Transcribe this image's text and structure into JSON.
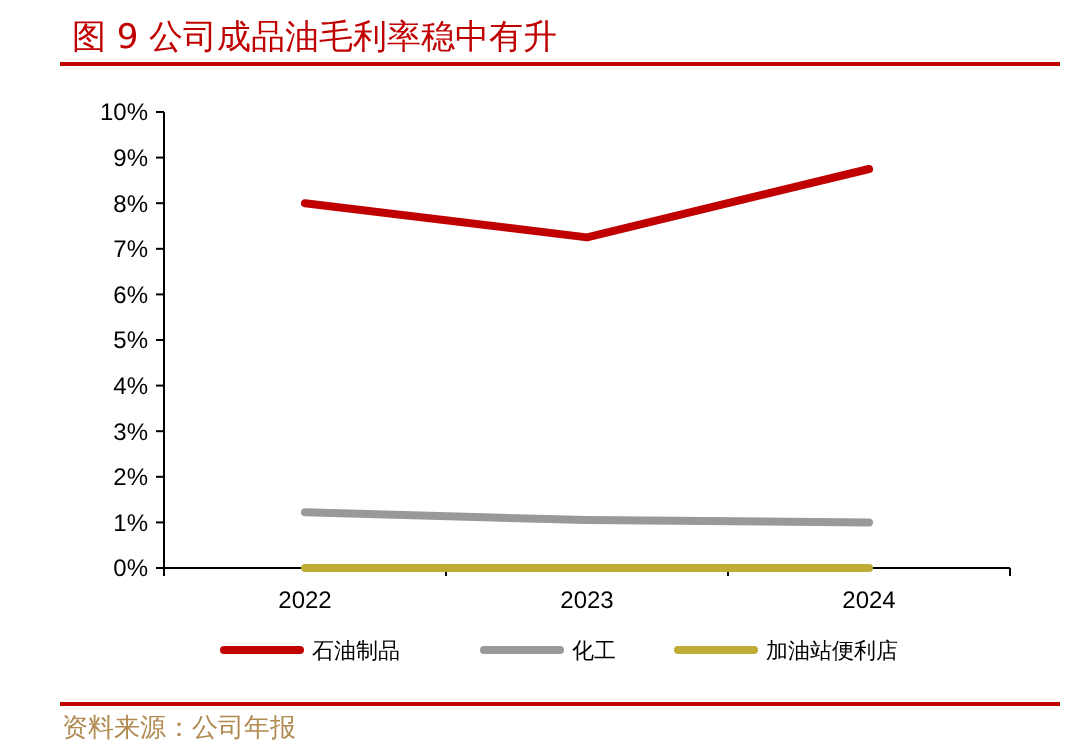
{
  "chart_data": {
    "type": "line",
    "title": "图 9 公司成品油毛利率稳中有升",
    "categories": [
      "2022",
      "2023",
      "2024"
    ],
    "series": [
      {
        "name": "石油制品",
        "color": "#c00000",
        "values": [
          8.0,
          7.25,
          8.75
        ]
      },
      {
        "name": "化工",
        "color": "#999999",
        "values": [
          1.22,
          1.05,
          1.0
        ]
      },
      {
        "name": "加油站便利店",
        "color": "#bfac36",
        "values": [
          0,
          0,
          0
        ]
      }
    ],
    "ylim": [
      0,
      10
    ],
    "yticks": [
      {
        "value": 0,
        "label": "0%"
      },
      {
        "value": 1,
        "label": "1%"
      },
      {
        "value": 2,
        "label": "2%"
      },
      {
        "value": 3,
        "label": "3%"
      },
      {
        "value": 4,
        "label": "4%"
      },
      {
        "value": 5,
        "label": "5%"
      },
      {
        "value": 6,
        "label": "6%"
      },
      {
        "value": 7,
        "label": "7%"
      },
      {
        "value": 8,
        "label": "8%"
      },
      {
        "value": 9,
        "label": "9%"
      },
      {
        "value": 10,
        "label": "10%"
      }
    ],
    "grid": false,
    "legend": "bottom",
    "marker": "none",
    "line_style": "solid",
    "annotations": [
      "资料来源：公司年报"
    ]
  }
}
